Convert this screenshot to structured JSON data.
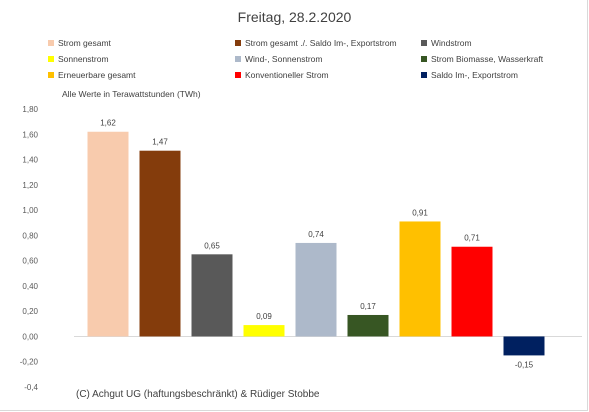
{
  "chart_data": {
    "type": "bar",
    "title": "Freitag, 28.2.2020",
    "subtitle": "Alle Werte in Terawattstunden (TWh)",
    "footer": "(C) Achgut UG (haftungsbeschränkt) & Rüdiger Stobbe",
    "ylim": [
      -0.4,
      1.8
    ],
    "yticks": [
      "-0,4",
      "-0,20",
      "0,00",
      "0,20",
      "0,40",
      "0,60",
      "0,80",
      "1,00",
      "1,20",
      "1,40",
      "1,60",
      "1,80"
    ],
    "grid": false,
    "legend_position": "top",
    "series": [
      {
        "name": "Strom gesamt",
        "value": 1.62,
        "label": "1,62",
        "color": "#f8cbad"
      },
      {
        "name": "Strom gesamt ./. Saldo Im-, Exportstrom",
        "value": 1.47,
        "label": "1,47",
        "color": "#843c0c"
      },
      {
        "name": "Windstrom",
        "value": 0.65,
        "label": "0,65",
        "color": "#595959"
      },
      {
        "name": "Sonnenstrom",
        "value": 0.09,
        "label": "0,09",
        "color": "#ffff00"
      },
      {
        "name": "Wind-, Sonnenstrom",
        "value": 0.74,
        "label": "0,74",
        "color": "#adb9ca"
      },
      {
        "name": "Strom Biomasse, Wasserkraft",
        "value": 0.17,
        "label": "0,17",
        "color": "#375623"
      },
      {
        "name": "Erneuerbare gesamt",
        "value": 0.91,
        "label": "0,91",
        "color": "#ffc000"
      },
      {
        "name": "Konventioneller Strom",
        "value": 0.71,
        "label": "0,71",
        "color": "#ff0000"
      },
      {
        "name": "Saldo Im-, Exportstrom",
        "value": -0.15,
        "label": "-0,15",
        "color": "#002060"
      }
    ]
  }
}
